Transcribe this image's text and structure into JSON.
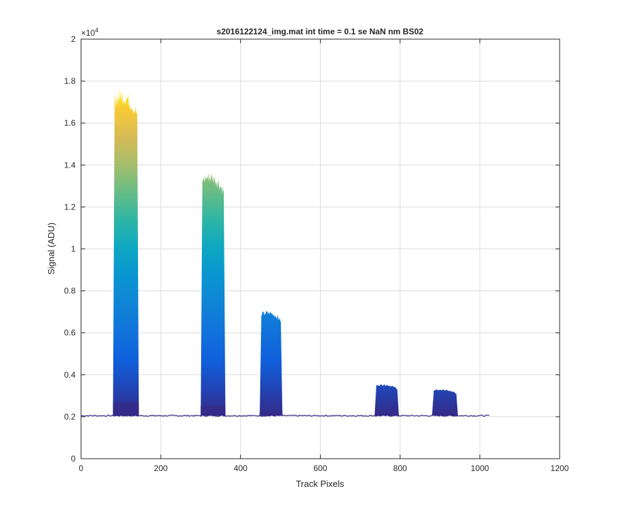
{
  "chart_data": {
    "type": "area",
    "title": "s2016122124_img.mat int time = 0.1 se  NaN nm BS02",
    "xlabel": "Track Pixels",
    "ylabel": "Signal (ADU)",
    "y_exponent_label": "×10",
    "y_exponent_power": "4",
    "xlim": [
      0,
      1200
    ],
    "ylim": [
      0,
      20000
    ],
    "x_ticks": [
      0,
      200,
      400,
      600,
      800,
      1000,
      1200
    ],
    "x_tick_labels": [
      "0",
      "200",
      "400",
      "600",
      "800",
      "1000",
      "1200"
    ],
    "y_ticks": [
      0,
      2000,
      4000,
      6000,
      8000,
      10000,
      12000,
      14000,
      16000,
      18000,
      20000
    ],
    "y_tick_labels": [
      "0",
      "0.2",
      "0.4",
      "0.6",
      "0.8",
      "1",
      "1.2",
      "1.4",
      "1.6",
      "1.8",
      "2"
    ],
    "grid": true,
    "colormap": "parula",
    "baseline": 2050,
    "x_range": [
      1,
      1024
    ],
    "peaks": [
      {
        "x_start": 80,
        "x_end": 145,
        "peak": 17900
      },
      {
        "x_start": 300,
        "x_end": 362,
        "peak": 13900
      },
      {
        "x_start": 448,
        "x_end": 505,
        "peak": 7200
      },
      {
        "x_start": 736,
        "x_end": 797,
        "peak": 3650
      },
      {
        "x_start": 880,
        "x_end": 945,
        "peak": 3400
      }
    ],
    "colors": {
      "line_dark": "#352a87",
      "grid": "#dcdcdc",
      "axis": "#262626"
    }
  }
}
